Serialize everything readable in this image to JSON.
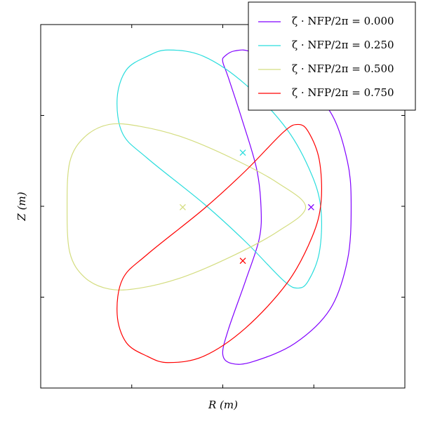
{
  "chart_data": {
    "type": "closed-curve",
    "xlabel": "R (m)",
    "ylabel": "Z (m)",
    "xlim": [
      0,
      4
    ],
    "ylim": [
      0,
      4
    ],
    "xticks": [
      1,
      2,
      3
    ],
    "yticks": [
      1,
      2,
      3
    ],
    "legend": "upper right",
    "series": [
      {
        "name": "ζ · NFP/2π = 0.000",
        "color": "#8000ff",
        "x": [
          2.02,
          2.13,
          2.33,
          2.79,
          3.18,
          3.37,
          3.41,
          3.37,
          3.18,
          2.79,
          2.33,
          2.1,
          2.0,
          2.06,
          2.25,
          2.4,
          2.42,
          2.37,
          2.21,
          2.06,
          2.0
        ],
        "y": [
          3.65,
          3.71,
          3.69,
          3.42,
          3.04,
          2.49,
          1.99,
          1.41,
          0.87,
          0.49,
          0.29,
          0.27,
          0.37,
          0.64,
          1.18,
          1.64,
          1.99,
          2.42,
          2.96,
          3.42,
          3.59
        ],
        "center": [
          2.97,
          1.99
        ]
      },
      {
        "name": "ζ · NFP/2π = 0.250",
        "color": "#2adddd",
        "x": [
          0.84,
          0.94,
          1.17,
          1.4,
          1.79,
          2.25,
          2.71,
          2.98,
          3.08,
          3.06,
          2.94,
          2.83,
          2.67,
          2.25,
          1.79,
          1.17,
          0.9
        ],
        "y": [
          3.19,
          3.5,
          3.65,
          3.72,
          3.65,
          3.34,
          2.84,
          2.34,
          1.95,
          1.49,
          1.18,
          1.1,
          1.18,
          1.61,
          2.03,
          2.53,
          2.8
        ],
        "center": [
          2.22,
          2.59
        ]
      },
      {
        "name": "ζ · NFP/2π = 0.500",
        "color": "#d4dd80",
        "x": [
          0.29,
          0.32,
          0.48,
          0.75,
          1.09,
          1.56,
          2.1,
          2.6,
          2.91,
          2.6,
          2.1,
          1.56,
          1.09,
          0.75,
          0.48,
          0.32
        ],
        "y": [
          1.99,
          2.49,
          2.76,
          2.9,
          2.88,
          2.76,
          2.53,
          2.26,
          1.99,
          1.72,
          1.45,
          1.22,
          1.1,
          1.09,
          1.22,
          1.49
        ],
        "center": [
          1.56,
          1.99
        ]
      },
      {
        "name": "ζ · NFP/2π = 0.750",
        "color": "#ff0000",
        "x": [
          0.84,
          0.94,
          1.17,
          1.4,
          1.79,
          2.25,
          2.71,
          2.98,
          3.08,
          3.06,
          2.94,
          2.83,
          2.67,
          2.25,
          1.79,
          1.17,
          0.9
        ],
        "y": [
          0.81,
          0.5,
          0.35,
          0.28,
          0.35,
          0.66,
          1.16,
          1.66,
          2.05,
          2.51,
          2.82,
          2.9,
          2.82,
          2.39,
          1.97,
          1.47,
          1.2
        ],
        "center": [
          2.22,
          1.4
        ]
      }
    ]
  }
}
